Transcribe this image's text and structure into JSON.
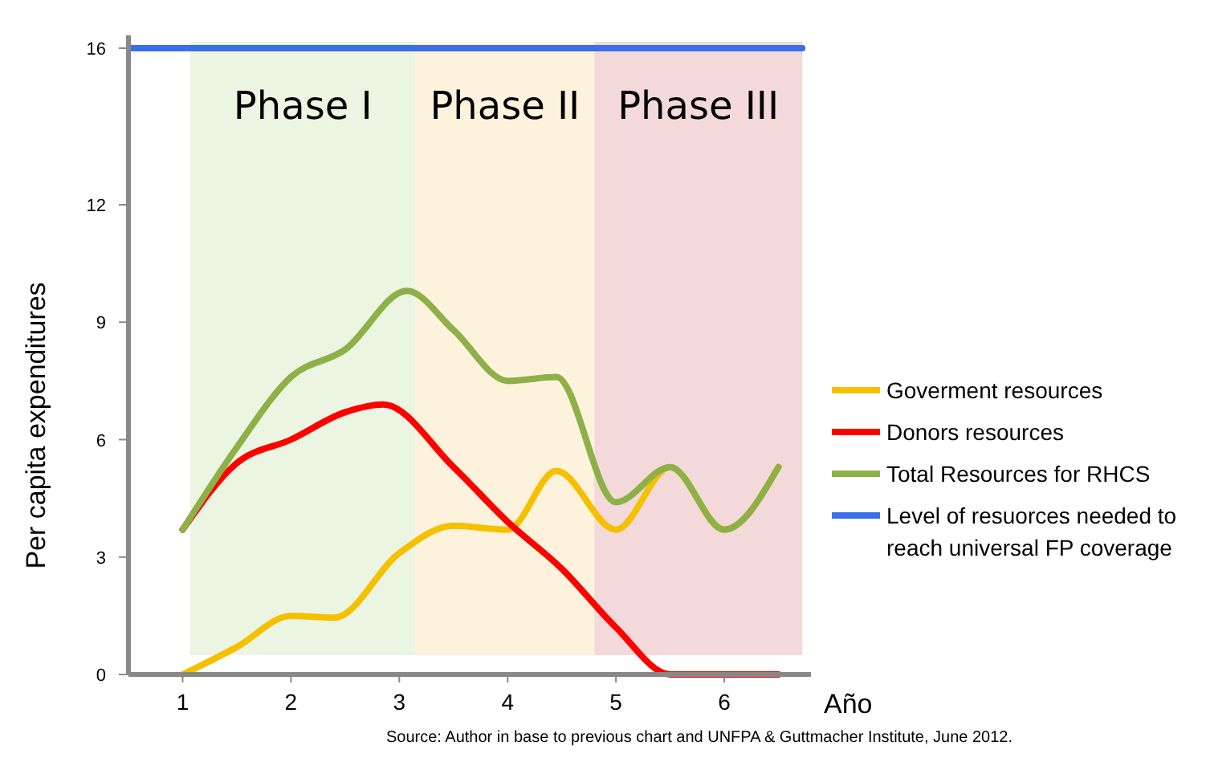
{
  "chart_data": {
    "type": "line",
    "xlabel": "Año",
    "ylabel": "Per capita expenditures",
    "xlim": [
      0.5,
      6.8
    ],
    "xticks": [
      1,
      2,
      3,
      4,
      5,
      6
    ],
    "ylim": [
      0,
      16
    ],
    "yticks": [
      0,
      3,
      6,
      9,
      12,
      16
    ],
    "grid": false,
    "legend": "right",
    "marker": "none",
    "line_style": "solid",
    "series": [
      {
        "name": "Goverment resources",
        "color": "#f5c000",
        "x": [
          1,
          1.5,
          2,
          2.4,
          3,
          3.5,
          4,
          4.45,
          5,
          5.5,
          6,
          6.5
        ],
        "values": [
          0,
          0.7,
          1.5,
          1.45,
          3.1,
          3.8,
          3.7,
          5.2,
          3.7,
          5.3,
          3.7,
          5.3
        ]
      },
      {
        "name": "Donors resources",
        "color": "#ff0000",
        "x": [
          1,
          1.5,
          2,
          2.5,
          2.85,
          3.5,
          4,
          4.5,
          5,
          5.5,
          6,
          6.5
        ],
        "values": [
          3.7,
          5.4,
          6,
          6.7,
          6.9,
          5.3,
          3.9,
          2.7,
          1.2,
          0,
          0,
          0
        ]
      },
      {
        "name": "Total Resources for RHCS",
        "color": "#8db048",
        "x": [
          1,
          1.5,
          2,
          2.5,
          3.07,
          3.5,
          4,
          4.45,
          5,
          5.5,
          6,
          6.5
        ],
        "values": [
          3.7,
          5.8,
          7.6,
          8.3,
          9.8,
          8.8,
          7.5,
          7.6,
          4.4,
          5.3,
          3.7,
          5.3
        ]
      },
      {
        "name": "Level of resuorces needed  to reach universal FP coverage",
        "color": "#3b6fe8",
        "x": [
          0.52,
          6.72
        ],
        "values": [
          16,
          16
        ]
      }
    ],
    "bands": [
      {
        "axis": "x",
        "from": 1.07,
        "to": 3.15,
        "label": "Phase I",
        "color": "#ecf5e2"
      },
      {
        "axis": "x",
        "from": 3.15,
        "to": 4.8,
        "label": "Phase II",
        "color": "#fdf3dc"
      },
      {
        "axis": "x",
        "from": 4.8,
        "to": 6.72,
        "label": "Phase III",
        "color": "#f3d9d9"
      }
    ],
    "annotations": [
      "Source: Author  in base  to previous chart and UNFPA & Guttmacher Institute, June 2012."
    ]
  }
}
